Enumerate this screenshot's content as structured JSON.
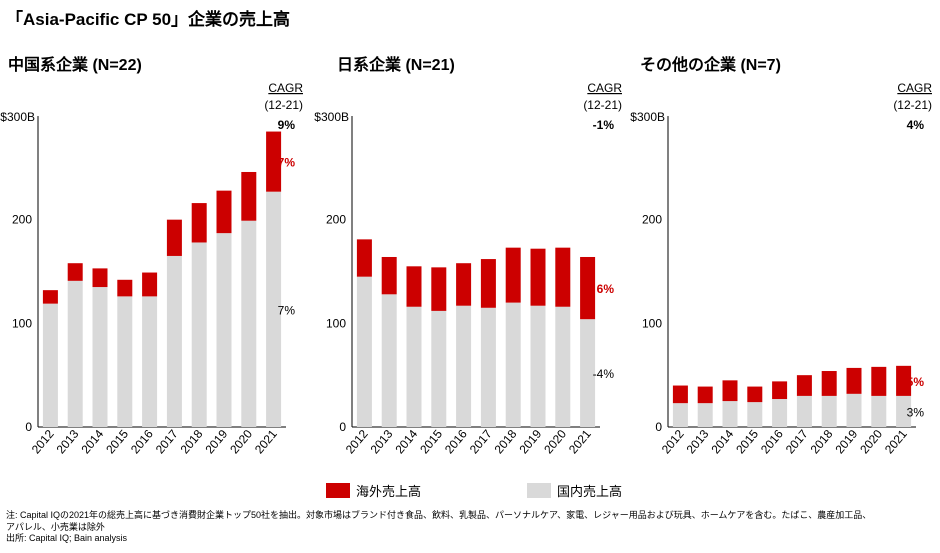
{
  "page": {
    "title": "「Asia-Pacific CP 50」企業の売上高"
  },
  "legend": {
    "overseas": {
      "label": "海外売上高",
      "color": "#cc0000"
    },
    "domestic": {
      "label": "国内売上高",
      "color": "#d9d9d9"
    }
  },
  "notes": {
    "line1": "注: Capital IQの2021年の総売上高に基づき消費財企業トップ50社を抽出。対象市場はブランド付き食品、飲料、乳製品、パーソナルケア、家電、レジャー用品および玩具、ホームケアを含む。たばこ、農産加工品、",
    "line2": "アパレル、小売業は除外",
    "line3": "出所: Capital IQ; Bain analysis"
  },
  "chart_data": [
    {
      "type": "bar",
      "stacked": true,
      "title": "中国系企業 (N=22)",
      "y_unit_label": "$300B",
      "ytick_labels": [
        "0",
        "100",
        "200"
      ],
      "ylim": [
        0,
        300
      ],
      "categories": [
        "2012",
        "2013",
        "2014",
        "2015",
        "2016",
        "2017",
        "2018",
        "2019",
        "2020",
        "2021"
      ],
      "series": [
        {
          "key": "domestic",
          "values": [
            119,
            141,
            135,
            126,
            126,
            165,
            178,
            187,
            199,
            227
          ]
        },
        {
          "key": "overseas",
          "values": [
            13,
            17,
            18,
            16,
            23,
            35,
            38,
            41,
            47,
            58
          ]
        }
      ],
      "cagr": {
        "header": "CAGR",
        "period": "(12-21)",
        "total": "9%",
        "overseas": "17%",
        "domestic": "7%"
      }
    },
    {
      "type": "bar",
      "stacked": true,
      "title": "日系企業 (N=21)",
      "y_unit_label": "$300B",
      "ytick_labels": [
        "0",
        "100",
        "200"
      ],
      "ylim": [
        0,
        300
      ],
      "categories": [
        "2012",
        "2013",
        "2014",
        "2015",
        "2016",
        "2017",
        "2018",
        "2019",
        "2020",
        "2021"
      ],
      "series": [
        {
          "key": "domestic",
          "values": [
            145,
            128,
            116,
            112,
            117,
            115,
            120,
            117,
            116,
            104
          ]
        },
        {
          "key": "overseas",
          "values": [
            36,
            36,
            39,
            42,
            41,
            47,
            53,
            55,
            57,
            60
          ]
        }
      ],
      "cagr": {
        "header": "CAGR",
        "period": "(12-21)",
        "total": "-1%",
        "overseas": "6%",
        "domestic": "-4%"
      }
    },
    {
      "type": "bar",
      "stacked": true,
      "title": "その他の企業 (N=7)",
      "y_unit_label": "$300B",
      "ytick_labels": [
        "0",
        "100",
        "200"
      ],
      "ylim": [
        0,
        300
      ],
      "categories": [
        "2012",
        "2013",
        "2014",
        "2015",
        "2016",
        "2017",
        "2018",
        "2019",
        "2020",
        "2021"
      ],
      "series": [
        {
          "key": "domestic",
          "values": [
            23,
            23,
            25,
            24,
            27,
            30,
            30,
            32,
            30,
            30
          ]
        },
        {
          "key": "overseas",
          "values": [
            17,
            16,
            20,
            15,
            17,
            20,
            24,
            25,
            28,
            29
          ]
        }
      ],
      "cagr": {
        "header": "CAGR",
        "period": "(12-21)",
        "total": "4%",
        "overseas": "5%",
        "domestic": "3%"
      }
    }
  ]
}
